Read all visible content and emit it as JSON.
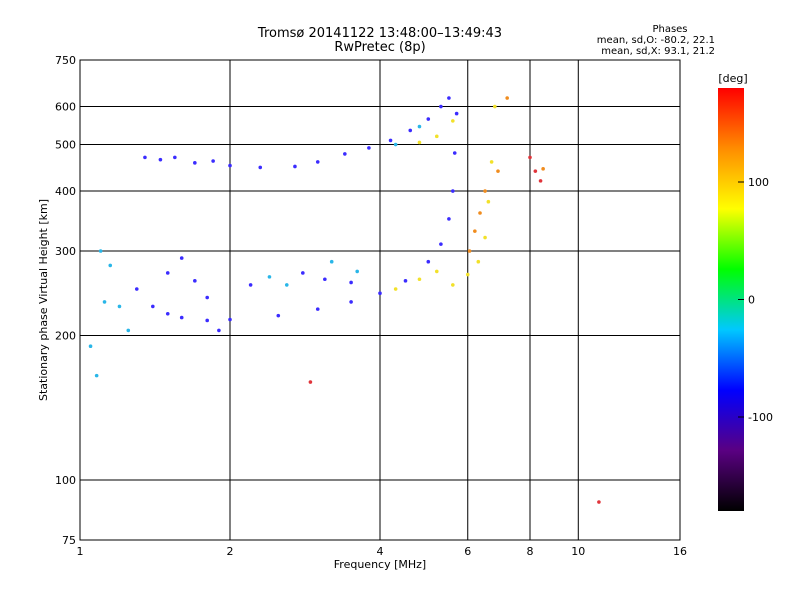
{
  "header": {
    "title": "Tromsø 20141122 13:48:00–13:49:43",
    "subtitle": "RwPretec (8p)"
  },
  "stats": {
    "heading": "Phases",
    "line_o": "mean, sd,O: -80.2, 22.1",
    "line_x": "mean, sd,X:  93.1, 21.2"
  },
  "chart_data": {
    "type": "scatter",
    "title": "Tromsø 20141122 13:48:00–13:49:43",
    "subtitle": "RwPretec (8p)",
    "xlabel": "Frequency [MHz]",
    "ylabel": "Stationary phase Virtual Height [km]",
    "xscale": "log",
    "yscale": "log",
    "xlim": [
      1,
      16
    ],
    "ylim": [
      75,
      750
    ],
    "xticks": [
      1,
      2,
      4,
      6,
      8,
      10,
      16
    ],
    "yticks": [
      75,
      100,
      200,
      300,
      400,
      500,
      600,
      750
    ],
    "grid": true,
    "colorbar": {
      "label": "[deg]",
      "range": [
        -180,
        180
      ],
      "ticks": [
        100,
        0,
        -100
      ],
      "colors": [
        "#000000",
        "#5a0082",
        "#0000ff",
        "#00c8ff",
        "#00ff00",
        "#ffff00",
        "#ff8c00",
        "#ff0000"
      ]
    },
    "series": [
      {
        "points": [
          [
            1.35,
            470
          ],
          [
            1.45,
            465
          ],
          [
            1.55,
            470
          ],
          [
            1.7,
            458
          ],
          [
            1.85,
            462
          ],
          [
            2.0,
            452
          ],
          [
            2.3,
            448
          ],
          [
            2.7,
            450
          ],
          [
            3.0,
            460
          ],
          [
            3.4,
            478
          ],
          [
            3.8,
            492
          ],
          [
            4.2,
            510
          ],
          [
            4.6,
            535
          ],
          [
            5.0,
            565
          ],
          [
            5.3,
            600
          ],
          [
            5.5,
            625
          ],
          [
            1.3,
            250
          ],
          [
            1.4,
            230
          ],
          [
            1.5,
            222
          ],
          [
            1.6,
            218
          ],
          [
            1.8,
            215
          ],
          [
            2.0,
            216
          ],
          [
            2.5,
            220
          ],
          [
            3.0,
            227
          ],
          [
            3.5,
            235
          ],
          [
            4.0,
            245
          ],
          [
            4.5,
            260
          ],
          [
            5.0,
            285
          ],
          [
            5.3,
            310
          ],
          [
            5.5,
            350
          ],
          [
            5.6,
            400
          ],
          [
            5.65,
            480
          ],
          [
            5.7,
            580
          ],
          [
            1.5,
            270
          ],
          [
            1.6,
            290
          ],
          [
            1.7,
            260
          ],
          [
            1.8,
            240
          ],
          [
            1.9,
            205
          ],
          [
            2.2,
            255
          ],
          [
            2.8,
            270
          ],
          [
            3.1,
            262
          ],
          [
            3.5,
            258
          ]
        ]
      },
      {
        "points": [
          [
            1.05,
            190
          ],
          [
            1.08,
            165
          ],
          [
            1.12,
            235
          ],
          [
            1.15,
            280
          ],
          [
            1.1,
            300
          ],
          [
            1.2,
            230
          ],
          [
            1.25,
            205
          ],
          [
            2.4,
            265
          ],
          [
            2.6,
            255
          ],
          [
            3.2,
            285
          ],
          [
            3.6,
            272
          ],
          [
            4.3,
            500
          ],
          [
            4.8,
            545
          ]
        ]
      },
      {
        "points": [
          [
            4.3,
            250
          ],
          [
            4.8,
            262
          ],
          [
            5.2,
            272
          ],
          [
            5.6,
            255
          ],
          [
            6.0,
            268
          ],
          [
            6.3,
            285
          ],
          [
            6.5,
            320
          ],
          [
            6.6,
            380
          ],
          [
            6.7,
            460
          ],
          [
            6.8,
            600
          ],
          [
            5.6,
            560
          ],
          [
            4.8,
            505
          ],
          [
            5.2,
            520
          ]
        ]
      },
      {
        "points": [
          [
            6.05,
            300
          ],
          [
            6.2,
            330
          ],
          [
            6.35,
            360
          ],
          [
            6.5,
            400
          ],
          [
            6.9,
            440
          ],
          [
            7.2,
            625
          ],
          [
            8.5,
            445
          ]
        ]
      },
      {
        "points": [
          [
            8.0,
            470
          ],
          [
            8.2,
            440
          ],
          [
            8.4,
            420
          ],
          [
            2.9,
            160
          ],
          [
            11.0,
            90
          ]
        ]
      }
    ]
  }
}
